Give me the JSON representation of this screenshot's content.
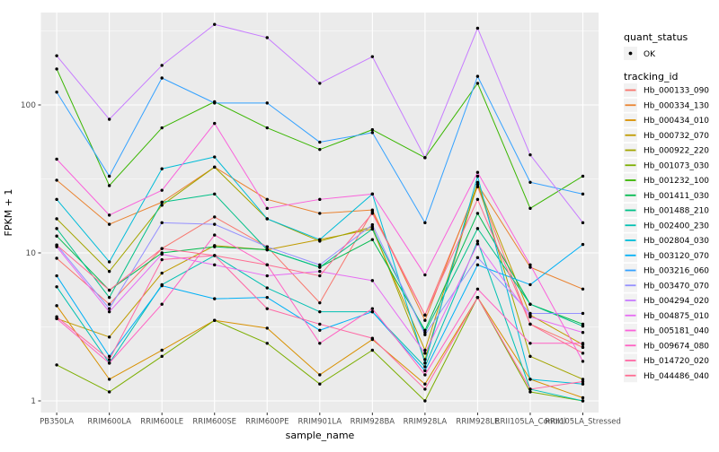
{
  "chart_data": {
    "type": "line",
    "title": "",
    "xlabel": "sample_name",
    "ylabel": "FPKM + 1",
    "yscale": "log10",
    "yticks": [
      1,
      10,
      100
    ],
    "ylim": [
      1,
      400
    ],
    "grid": true,
    "legend_position": "right",
    "panel_bg": "#EBEBEB",
    "gridline_color": "#FFFFFF",
    "tick_label_color": "#4D4D4D",
    "point_color": "#000000",
    "legend": {
      "quant_status_title": "quant_status",
      "quant_status_items": [
        "OK"
      ],
      "tracking_id_title": "tracking_id"
    },
    "categories": [
      "PB350LA",
      "RRIM600LA",
      "RRIM600LE",
      "RRIM600SE",
      "RRIM600PE",
      "RRIM901LA",
      "RRIM928BA",
      "RRIM928LA",
      "RRIM928LE",
      "RRII105LA_Control",
      "RRII105LA_Stressed"
    ],
    "series": [
      {
        "name": "Hb_000133_090",
        "color": "#F8766D",
        "values": [
          9.2,
          4.5,
          10.7,
          17.5,
          11.0,
          4.6,
          19.0,
          3.8,
          28.0,
          3.3,
          2.3
        ]
      },
      {
        "name": "Hb_000334_130",
        "color": "#EA8331",
        "values": [
          31.0,
          15.6,
          22.0,
          38.0,
          23.0,
          18.5,
          19.5,
          3.5,
          29.0,
          8.0,
          5.7
        ]
      },
      {
        "name": "Hb_000434_010",
        "color": "#D89000",
        "values": [
          4.4,
          1.4,
          2.2,
          3.5,
          3.1,
          1.5,
          2.6,
          1.3,
          5.0,
          1.4,
          1.05
        ]
      },
      {
        "name": "Hb_000732_070",
        "color": "#C09B00",
        "values": [
          3.6,
          2.7,
          7.3,
          11.2,
          10.5,
          12.3,
          14.5,
          2.2,
          29.0,
          3.8,
          2.4
        ]
      },
      {
        "name": "Hb_000922_220",
        "color": "#A3A500",
        "values": [
          17.0,
          7.5,
          21.0,
          38.0,
          17.0,
          12.0,
          15.0,
          1.9,
          30.0,
          2.0,
          1.4
        ]
      },
      {
        "name": "Hb_001073_030",
        "color": "#7CAE00",
        "values": [
          1.75,
          1.15,
          2.0,
          3.5,
          2.45,
          1.3,
          2.2,
          1.0,
          5.0,
          1.15,
          1.0
        ]
      },
      {
        "name": "Hb_001232_100",
        "color": "#39B600",
        "values": [
          175,
          28.5,
          70,
          105,
          70,
          50,
          68,
          44,
          140,
          20,
          33
        ]
      },
      {
        "name": "Hb_001411_030",
        "color": "#00BB4E",
        "values": [
          13.0,
          5.6,
          10.0,
          11.0,
          10.5,
          8.0,
          12.3,
          3.0,
          18.5,
          4.5,
          3.3
        ]
      },
      {
        "name": "Hb_001488_210",
        "color": "#00C087",
        "values": [
          14.6,
          5.0,
          22.0,
          25.0,
          10.5,
          8.0,
          14.5,
          2.9,
          14.6,
          4.5,
          3.2
        ]
      },
      {
        "name": "Hb_002400_230",
        "color": "#00C0B2",
        "values": [
          5.9,
          1.8,
          6.1,
          9.6,
          5.8,
          4.0,
          4.0,
          1.7,
          12.0,
          1.2,
          1.0
        ]
      },
      {
        "name": "Hb_002804_030",
        "color": "#00BCD8",
        "values": [
          23.0,
          8.7,
          37.0,
          44.5,
          17.0,
          12.3,
          25.0,
          1.8,
          33.0,
          1.4,
          1.3
        ]
      },
      {
        "name": "Hb_003120_070",
        "color": "#00B0F6",
        "values": [
          7.0,
          2.0,
          6.0,
          4.9,
          5.0,
          3.0,
          4.0,
          1.6,
          8.3,
          6.1,
          11.4
        ]
      },
      {
        "name": "Hb_003216_060",
        "color": "#35A2FF",
        "values": [
          122,
          33,
          152,
          103,
          103,
          56,
          65,
          16,
          156,
          30,
          25
        ]
      },
      {
        "name": "Hb_003470_070",
        "color": "#9590FF",
        "values": [
          11.3,
          4.2,
          16.0,
          15.6,
          11.0,
          8.3,
          15.5,
          2.8,
          9.3,
          3.9,
          3.9
        ]
      },
      {
        "name": "Hb_004294_020",
        "color": "#C77CFF",
        "values": [
          215,
          80,
          185,
          350,
          285,
          140,
          212,
          44,
          330,
          46,
          16
        ]
      },
      {
        "name": "Hb_004875_010",
        "color": "#E76BF3",
        "values": [
          11.0,
          4.0,
          9.8,
          8.3,
          7.0,
          7.5,
          6.5,
          2.1,
          11.5,
          3.7,
          2.9
        ]
      },
      {
        "name": "Hb_005181_040",
        "color": "#FA62DB",
        "values": [
          43,
          18,
          26.5,
          75,
          20,
          23,
          25,
          7.1,
          35,
          8.3,
          1.85
        ]
      },
      {
        "name": "Hb_009674_080",
        "color": "#FF61C3",
        "values": [
          3.6,
          1.8,
          4.5,
          13.2,
          8.3,
          2.45,
          4.2,
          1.5,
          5.7,
          2.45,
          2.45
        ]
      },
      {
        "name": "Hb_014720_020",
        "color": "#FF67A4",
        "values": [
          3.7,
          1.9,
          9.0,
          9.6,
          4.2,
          3.3,
          2.65,
          1.2,
          5.0,
          1.2,
          1.35
        ]
      },
      {
        "name": "Hb_044486_040",
        "color": "#FF6C91",
        "values": [
          11.3,
          5.6,
          10.7,
          9.6,
          8.3,
          7.0,
          18.5,
          3.8,
          23.0,
          3.3,
          2.1
        ]
      }
    ]
  }
}
